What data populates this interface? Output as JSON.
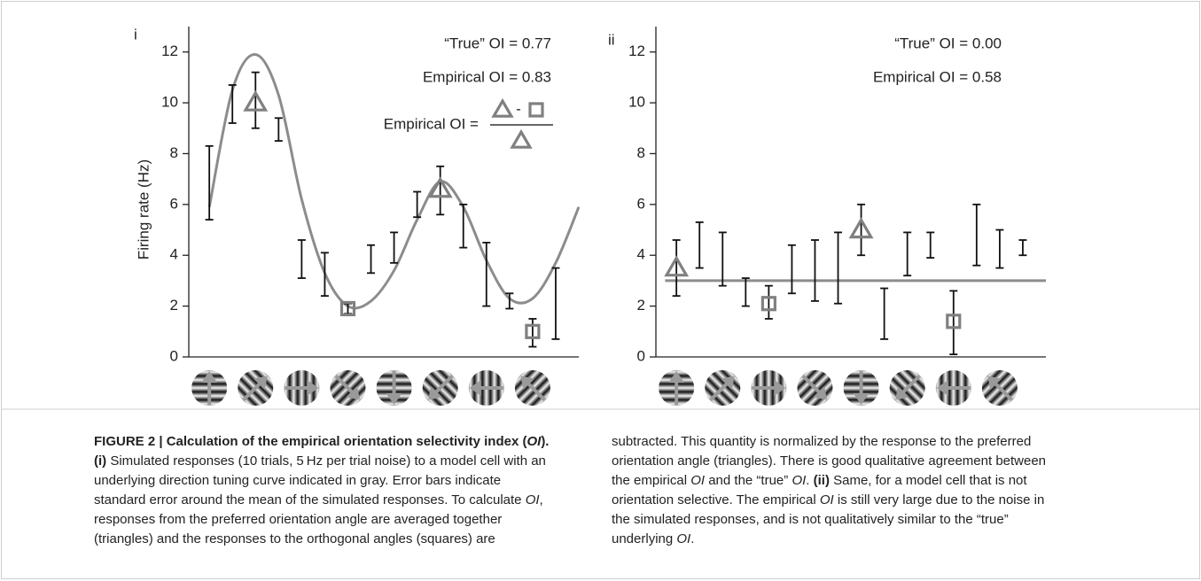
{
  "chart_data": [
    {
      "type": "errorbar",
      "label": "i",
      "ylabel": "Firing rate (Hz)",
      "x": [
        0,
        22.5,
        45,
        67.5,
        90,
        112.5,
        135,
        157.5,
        180,
        202.5,
        225,
        247.5,
        270,
        292.5,
        315,
        337.5
      ],
      "values": [
        6.85,
        9.95,
        10.1,
        8.95,
        3.85,
        3.25,
        1.9,
        3.85,
        4.3,
        6.0,
        6.55,
        5.15,
        3.25,
        2.2,
        0.95,
        2.1
      ],
      "errors": [
        1.45,
        0.75,
        1.1,
        0.45,
        0.75,
        0.85,
        0.2,
        0.55,
        0.6,
        0.5,
        0.95,
        0.85,
        1.25,
        0.3,
        0.55,
        1.4
      ],
      "color": "#111111",
      "curve": {
        "x": [
          0,
          22.5,
          45,
          67.5,
          90,
          112.5,
          135,
          157.5,
          180,
          202.5,
          225,
          247.5,
          270,
          292.5,
          315,
          337.5,
          360
        ],
        "values": [
          5.9,
          10.5,
          11.9,
          10.3,
          6.2,
          3.3,
          2.0,
          2.2,
          3.4,
          5.4,
          6.9,
          5.9,
          3.8,
          2.3,
          2.3,
          3.7,
          5.9
        ],
        "color": "#8c8c8c"
      },
      "triangles": {
        "x": [
          45,
          225
        ],
        "values": [
          10.0,
          6.6
        ]
      },
      "squares": {
        "x": [
          135,
          315
        ],
        "values": [
          1.9,
          1.0
        ]
      },
      "marker_color": "#808080",
      "annotations": [
        "“True” OI = 0.77",
        "Empirical OI = 0.83"
      ],
      "formula": {
        "lhs": "Empirical OI =",
        "minus": "-"
      },
      "xlim": [
        -20,
        360
      ],
      "ylim": [
        0,
        13
      ],
      "yticks": [
        0,
        2,
        4,
        6,
        8,
        10,
        12
      ]
    },
    {
      "type": "errorbar",
      "label": "ii",
      "x": [
        0,
        22.5,
        45,
        67.5,
        90,
        112.5,
        135,
        157.5,
        180,
        202.5,
        225,
        247.5,
        270,
        292.5,
        315,
        337.5
      ],
      "values": [
        3.5,
        4.4,
        3.85,
        2.55,
        2.15,
        3.45,
        3.4,
        3.5,
        5.0,
        1.7,
        4.05,
        4.4,
        1.35,
        4.8,
        4.25,
        4.3
      ],
      "errors": [
        1.1,
        0.9,
        1.05,
        0.55,
        0.65,
        0.95,
        1.2,
        1.4,
        1.0,
        1.0,
        0.85,
        0.5,
        1.25,
        1.2,
        0.75,
        0.3
      ],
      "color": "#111111",
      "curve": {
        "x": [
          -11,
          360
        ],
        "values": [
          3.0,
          3.0
        ],
        "color": "#8c8c8c"
      },
      "triangles": {
        "x": [
          0,
          180
        ],
        "values": [
          3.5,
          5.0
        ]
      },
      "squares": {
        "x": [
          90,
          270
        ],
        "values": [
          2.1,
          1.4
        ]
      },
      "marker_color": "#808080",
      "annotations": [
        "“True” OI = 0.00",
        "Empirical OI = 0.58"
      ],
      "xlim": [
        -20,
        360
      ],
      "ylim": [
        0,
        13
      ],
      "yticks": [
        0,
        2,
        4,
        6,
        8,
        10,
        12
      ]
    }
  ],
  "caption": {
    "left": [
      [
        {
          "text": "FIGURE 2 | Calculation of the empirical orientation selectivity index (",
          "style": "bold"
        },
        {
          "text": "OI",
          "style": "bold-italic"
        },
        {
          "text": ").",
          "style": "bold"
        }
      ],
      [
        {
          "text": "(i)",
          "style": "bold"
        },
        {
          "text": " Simulated responses (10 trials, 5 Hz per trial noise) to a model cell with an"
        }
      ],
      [
        {
          "text": "underlying direction tuning curve indicated in gray. Error bars indicate"
        }
      ],
      [
        {
          "text": "standard error around the mean of the simulated responses. To calculate "
        },
        {
          "text": "OI",
          "style": "italic"
        },
        {
          "text": ","
        }
      ],
      [
        {
          "text": "responses from the preferred orientation angle are averaged together"
        }
      ],
      [
        {
          "text": "(triangles) and the responses to the orthogonal angles (squares) are"
        }
      ]
    ],
    "right": [
      [
        {
          "text": "subtracted. This quantity is normalized by the response to the preferred"
        }
      ],
      [
        {
          "text": "orientation angle (triangles). There is good qualitative agreement between"
        }
      ],
      [
        {
          "text": "the empirical "
        },
        {
          "text": "OI",
          "style": "italic"
        },
        {
          "text": " and the “true” "
        },
        {
          "text": "OI",
          "style": "italic"
        },
        {
          "text": ". "
        },
        {
          "text": "(ii)",
          "style": "bold"
        },
        {
          "text": " Same, for a model cell that is not"
        }
      ],
      [
        {
          "text": "orientation selective. The empirical "
        },
        {
          "text": "OI",
          "style": "italic"
        },
        {
          "text": " is still very large due to the noise in"
        }
      ],
      [
        {
          "text": "the simulated responses, and is not qualitatively similar to the “true”"
        }
      ],
      [
        {
          "text": "underlying "
        },
        {
          "text": "OI",
          "style": "italic"
        },
        {
          "text": "."
        }
      ]
    ]
  }
}
